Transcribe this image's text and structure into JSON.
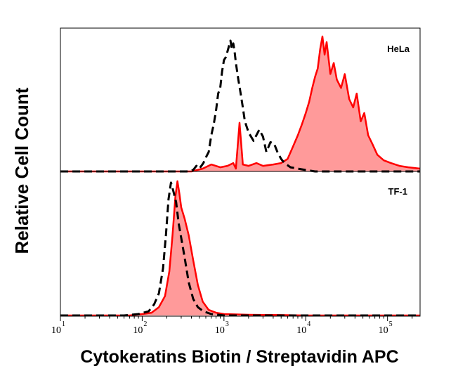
{
  "chart_data": {
    "type": "histogram-overlay",
    "xlabel": "Cytokeratins Biotin / Streptavidin APC",
    "ylabel": "Relative Cell Count",
    "x_scale": "log",
    "xlim": [
      10,
      250000
    ],
    "x_ticks": [
      {
        "value": 10,
        "base": "10",
        "exp": "1"
      },
      {
        "value": 100,
        "base": "10",
        "exp": "2"
      },
      {
        "value": 1000,
        "base": "10",
        "exp": "3"
      },
      {
        "value": 10000,
        "base": "10",
        "exp": "4"
      },
      {
        "value": 100000,
        "base": "10",
        "exp": "5"
      }
    ],
    "colors": {
      "stained_line": "#ff0000",
      "stained_fill": "#ff9a9a",
      "control_line": "#000000"
    },
    "panels": [
      {
        "label": "HeLa",
        "series": [
          {
            "style": "dashed-black-control",
            "points": [
              [
                10,
                0
              ],
              [
                350,
                0
              ],
              [
                420,
                0.01
              ],
              [
                460,
                0.04
              ],
              [
                500,
                0.02
              ],
              [
                560,
                0.06
              ],
              [
                600,
                0.1
              ],
              [
                650,
                0.14
              ],
              [
                700,
                0.26
              ],
              [
                750,
                0.34
              ],
              [
                800,
                0.44
              ],
              [
                850,
                0.56
              ],
              [
                900,
                0.6
              ],
              [
                950,
                0.72
              ],
              [
                1000,
                0.8
              ],
              [
                1050,
                0.82
              ],
              [
                1100,
                0.86
              ],
              [
                1150,
                0.9
              ],
              [
                1200,
                0.94
              ],
              [
                1250,
                0.88
              ],
              [
                1300,
                0.92
              ],
              [
                1350,
                0.86
              ],
              [
                1400,
                0.78
              ],
              [
                1500,
                0.66
              ],
              [
                1600,
                0.56
              ],
              [
                1700,
                0.46
              ],
              [
                1800,
                0.36
              ],
              [
                2000,
                0.28
              ],
              [
                2300,
                0.22
              ],
              [
                2700,
                0.3
              ],
              [
                3000,
                0.25
              ],
              [
                3300,
                0.14
              ],
              [
                3700,
                0.21
              ],
              [
                4100,
                0.2
              ],
              [
                4500,
                0.14
              ],
              [
                5000,
                0.09
              ],
              [
                5500,
                0.06
              ],
              [
                6500,
                0.03
              ],
              [
                8000,
                0.02
              ],
              [
                10000,
                0.01
              ],
              [
                13000,
                0
              ],
              [
                250000,
                0
              ]
            ]
          },
          {
            "style": "solid-red-stained-filled",
            "points": [
              [
                10,
                0
              ],
              [
                400,
                0
              ],
              [
                550,
                0.02
              ],
              [
                700,
                0.05
              ],
              [
                900,
                0.03
              ],
              [
                1100,
                0.04
              ],
              [
                1300,
                0.06
              ],
              [
                1400,
                0.02
              ],
              [
                1550,
                0.35
              ],
              [
                1700,
                0.05
              ],
              [
                2000,
                0.04
              ],
              [
                2500,
                0.06
              ],
              [
                3000,
                0.04
              ],
              [
                4000,
                0.05
              ],
              [
                5000,
                0.06
              ],
              [
                6000,
                0.09
              ],
              [
                7000,
                0.18
              ],
              [
                8000,
                0.26
              ],
              [
                9000,
                0.34
              ],
              [
                10000,
                0.42
              ],
              [
                11000,
                0.5
              ],
              [
                12000,
                0.6
              ],
              [
                13000,
                0.68
              ],
              [
                14000,
                0.74
              ],
              [
                15000,
                0.88
              ],
              [
                16000,
                0.97
              ],
              [
                17000,
                0.84
              ],
              [
                18000,
                0.93
              ],
              [
                20000,
                0.7
              ],
              [
                22000,
                0.78
              ],
              [
                24000,
                0.66
              ],
              [
                27000,
                0.6
              ],
              [
                30000,
                0.7
              ],
              [
                34000,
                0.52
              ],
              [
                38000,
                0.46
              ],
              [
                42000,
                0.56
              ],
              [
                47000,
                0.36
              ],
              [
                52000,
                0.42
              ],
              [
                58000,
                0.26
              ],
              [
                65000,
                0.2
              ],
              [
                75000,
                0.12
              ],
              [
                90000,
                0.08
              ],
              [
                110000,
                0.06
              ],
              [
                140000,
                0.04
              ],
              [
                180000,
                0.03
              ],
              [
                250000,
                0.02
              ]
            ]
          }
        ]
      },
      {
        "label": "TF-1",
        "series": [
          {
            "style": "dashed-black-control",
            "points": [
              [
                10,
                0
              ],
              [
                60,
                0
              ],
              [
                90,
                0.01
              ],
              [
                120,
                0.03
              ],
              [
                140,
                0.08
              ],
              [
                160,
                0.16
              ],
              [
                180,
                0.34
              ],
              [
                195,
                0.58
              ],
              [
                210,
                0.84
              ],
              [
                225,
                0.96
              ],
              [
                240,
                0.9
              ],
              [
                260,
                0.82
              ],
              [
                280,
                0.66
              ],
              [
                300,
                0.56
              ],
              [
                330,
                0.42
              ],
              [
                370,
                0.24
              ],
              [
                420,
                0.12
              ],
              [
                480,
                0.06
              ],
              [
                560,
                0.03
              ],
              [
                700,
                0.01
              ],
              [
                1000,
                0
              ],
              [
                250000,
                0
              ]
            ]
          },
          {
            "style": "solid-red-stained-filled",
            "points": [
              [
                10,
                0
              ],
              [
                70,
                0
              ],
              [
                100,
                0.01
              ],
              [
                130,
                0.02
              ],
              [
                160,
                0.06
              ],
              [
                190,
                0.14
              ],
              [
                215,
                0.32
              ],
              [
                235,
                0.58
              ],
              [
                255,
                0.86
              ],
              [
                270,
                0.97
              ],
              [
                285,
                0.88
              ],
              [
                300,
                0.78
              ],
              [
                330,
                0.7
              ],
              [
                370,
                0.58
              ],
              [
                420,
                0.4
              ],
              [
                480,
                0.22
              ],
              [
                550,
                0.1
              ],
              [
                650,
                0.04
              ],
              [
                800,
                0.02
              ],
              [
                1000,
                0.01
              ],
              [
                2000,
                0.005
              ],
              [
                5000,
                0.003
              ],
              [
                10000,
                0
              ],
              [
                250000,
                0
              ]
            ]
          }
        ]
      }
    ]
  }
}
